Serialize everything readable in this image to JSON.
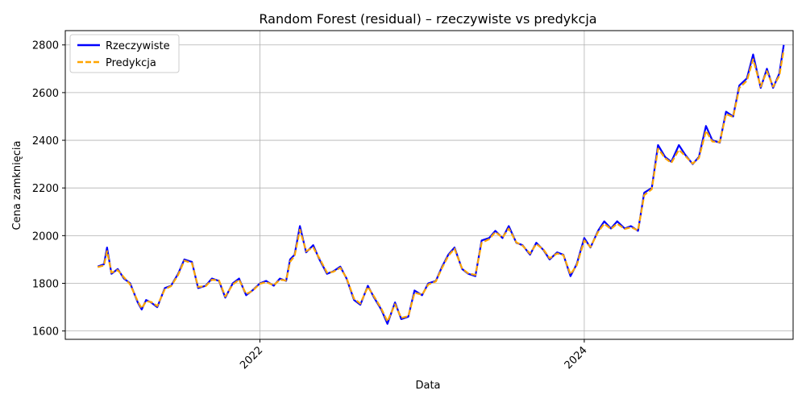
{
  "chart_data": {
    "type": "line",
    "title": "Random Forest (residual) – rzeczywiste vs predykcja",
    "xlabel": "Data",
    "ylabel": "Cena zamknięcia",
    "x_ticks": [
      {
        "label": "2022",
        "date": "2022-01-01"
      },
      {
        "label": "2024",
        "date": "2024-01-01"
      }
    ],
    "y_ticks": [
      1600,
      1800,
      2000,
      2200,
      2400,
      2600,
      2800
    ],
    "ylim": [
      1565,
      2860
    ],
    "xlim": [
      "2020-10-20",
      "2025-04-15"
    ],
    "grid": true,
    "legend_position": "top-left",
    "series": [
      {
        "name": "Rzeczywiste",
        "color": "#0000ff",
        "dash": "solid"
      },
      {
        "name": "Predykcja",
        "color": "#ffa500",
        "dash": "dashed"
      }
    ],
    "x": [
      "2021-01-01",
      "2021-01-15",
      "2021-01-22",
      "2021-02-01",
      "2021-02-15",
      "2021-03-01",
      "2021-03-15",
      "2021-04-01",
      "2021-04-10",
      "2021-04-20",
      "2021-05-01",
      "2021-05-15",
      "2021-06-01",
      "2021-06-15",
      "2021-07-01",
      "2021-07-15",
      "2021-08-01",
      "2021-08-15",
      "2021-09-01",
      "2021-09-15",
      "2021-10-01",
      "2021-10-15",
      "2021-11-01",
      "2021-11-15",
      "2021-12-01",
      "2021-12-15",
      "2022-01-01",
      "2022-01-15",
      "2022-02-01",
      "2022-02-15",
      "2022-03-01",
      "2022-03-10",
      "2022-03-20",
      "2022-04-01",
      "2022-04-15",
      "2022-05-01",
      "2022-05-15",
      "2022-06-01",
      "2022-06-15",
      "2022-07-01",
      "2022-07-15",
      "2022-08-01",
      "2022-08-15",
      "2022-09-01",
      "2022-09-15",
      "2022-10-01",
      "2022-10-15",
      "2022-11-01",
      "2022-11-15",
      "2022-12-01",
      "2022-12-15",
      "2023-01-01",
      "2023-01-15",
      "2023-02-01",
      "2023-02-15",
      "2023-03-01",
      "2023-03-15",
      "2023-04-01",
      "2023-04-15",
      "2023-05-01",
      "2023-05-15",
      "2023-06-01",
      "2023-06-15",
      "2023-07-01",
      "2023-07-15",
      "2023-08-01",
      "2023-08-15",
      "2023-09-01",
      "2023-09-15",
      "2023-10-01",
      "2023-10-15",
      "2023-11-01",
      "2023-11-15",
      "2023-12-01",
      "2023-12-15",
      "2024-01-01",
      "2024-01-15",
      "2024-02-01",
      "2024-02-15",
      "2024-03-01",
      "2024-03-15",
      "2024-04-01",
      "2024-04-15",
      "2024-05-01",
      "2024-05-15",
      "2024-06-01",
      "2024-06-15",
      "2024-07-01",
      "2024-07-15",
      "2024-08-01",
      "2024-08-15",
      "2024-09-01",
      "2024-09-15",
      "2024-10-01",
      "2024-10-15",
      "2024-11-01",
      "2024-11-15",
      "2024-12-01",
      "2024-12-15",
      "2025-01-01",
      "2025-01-15",
      "2025-02-01",
      "2025-02-15",
      "2025-03-01",
      "2025-03-15",
      "2025-03-25"
    ],
    "y_actual": [
      1870,
      1880,
      1950,
      1840,
      1860,
      1820,
      1800,
      1720,
      1690,
      1730,
      1720,
      1700,
      1780,
      1790,
      1840,
      1900,
      1890,
      1780,
      1790,
      1820,
      1810,
      1740,
      1800,
      1820,
      1750,
      1770,
      1800,
      1810,
      1790,
      1820,
      1810,
      1900,
      1920,
      2040,
      1930,
      1960,
      1900,
      1840,
      1850,
      1870,
      1820,
      1730,
      1710,
      1790,
      1740,
      1690,
      1630,
      1720,
      1650,
      1660,
      1770,
      1750,
      1800,
      1810,
      1870,
      1920,
      1950,
      1860,
      1840,
      1830,
      1980,
      1990,
      2020,
      1990,
      2040,
      1970,
      1960,
      1920,
      1970,
      1940,
      1900,
      1930,
      1920,
      1830,
      1880,
      1990,
      1950,
      2020,
      2060,
      2030,
      2060,
      2030,
      2040,
      2020,
      2180,
      2200,
      2380,
      2330,
      2310,
      2380,
      2340,
      2300,
      2330,
      2460,
      2400,
      2390,
      2520,
      2500,
      2630,
      2660,
      2760,
      2620,
      2700,
      2620,
      2680,
      2800
    ],
    "y_pred": [
      1868,
      1875,
      1935,
      1845,
      1855,
      1825,
      1795,
      1725,
      1695,
      1725,
      1722,
      1705,
      1775,
      1788,
      1835,
      1895,
      1885,
      1785,
      1788,
      1815,
      1812,
      1745,
      1795,
      1815,
      1755,
      1768,
      1798,
      1805,
      1792,
      1815,
      1812,
      1890,
      1915,
      2025,
      1935,
      1950,
      1905,
      1845,
      1848,
      1865,
      1822,
      1735,
      1715,
      1785,
      1745,
      1695,
      1640,
      1712,
      1655,
      1662,
      1760,
      1752,
      1795,
      1808,
      1865,
      1915,
      1945,
      1862,
      1842,
      1835,
      1970,
      1985,
      2015,
      1992,
      2030,
      1972,
      1958,
      1925,
      1965,
      1942,
      1905,
      1925,
      1918,
      1838,
      1875,
      1980,
      1952,
      2015,
      2050,
      2028,
      2050,
      2028,
      2035,
      2022,
      2170,
      2195,
      2365,
      2325,
      2305,
      2360,
      2335,
      2302,
      2325,
      2440,
      2395,
      2392,
      2510,
      2498,
      2620,
      2650,
      2740,
      2625,
      2690,
      2625,
      2670,
      2780
    ]
  }
}
